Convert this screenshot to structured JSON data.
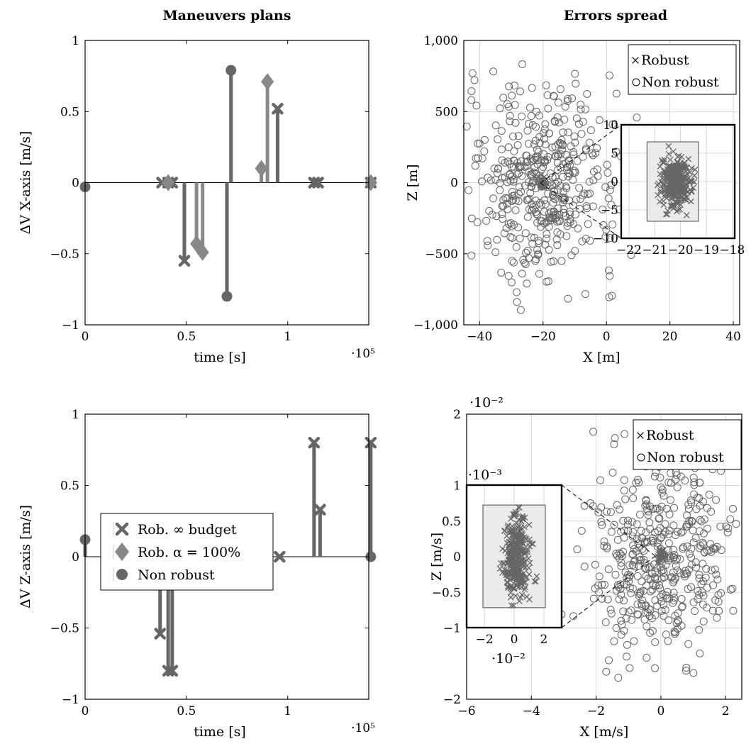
{
  "titles": {
    "left": "Maneuvers plans",
    "right": "Errors spread"
  },
  "colors": {
    "mark": "#666666",
    "light": "#888888",
    "grid": "#cccccc",
    "inset_fill": "#ebebeb"
  },
  "chart_data": [
    {
      "type": "stem",
      "ylabel": "ΔV X-axis [m/s]",
      "xlabel": "time [s]",
      "xscale_label": "·10⁵",
      "xlim": [
        0,
        1.4
      ],
      "ylim": [
        -1,
        1
      ],
      "xticks": [
        0,
        0.5,
        1
      ],
      "xtick_labels": [
        "0",
        "0.5",
        "1"
      ],
      "yticks": [
        1,
        0.5,
        0,
        -0.5,
        -1
      ],
      "ytick_labels": [
        "1",
        "0.5",
        "0",
        "−0.5",
        "−1"
      ],
      "series": [
        {
          "marker": "x",
          "x": [
            0.38,
            0.41,
            0.43,
            0.49,
            0.95,
            1.13,
            1.15,
            1.41
          ],
          "y": [
            0,
            0,
            0,
            -0.55,
            0.52,
            0,
            0,
            0
          ]
        },
        {
          "marker": "diamond",
          "x": [
            0.41,
            0.55,
            0.58,
            0.87,
            0.9,
            1.41
          ],
          "y": [
            0,
            -0.43,
            -0.49,
            0.1,
            0.71,
            0
          ]
        },
        {
          "marker": "circle",
          "x": [
            0,
            0.7,
            0.72
          ],
          "y": [
            -0.03,
            -0.8,
            0.79
          ]
        }
      ]
    },
    {
      "type": "scatter",
      "ylabel": "Z [m]",
      "xlabel": "X [m]",
      "xlim": [
        -45,
        42
      ],
      "ylim": [
        -1000,
        1000
      ],
      "xticks": [
        -40,
        -20,
        0,
        20,
        40
      ],
      "xtick_labels": [
        "−40",
        "−20",
        "0",
        "20",
        "40"
      ],
      "yticks": [
        1000,
        500,
        0,
        -500,
        -1000
      ],
      "ytick_labels": [
        "1,000",
        "500",
        "0",
        "−500",
        "−1,000"
      ],
      "legend": [
        "Robust",
        "Non robust"
      ],
      "legend_position": "top-right",
      "cloud": {
        "center": [
          -20,
          0
        ],
        "spread": [
          12,
          340
        ],
        "count": 460
      },
      "inset": {
        "xlim": [
          -22.3,
          -17.9
        ],
        "ylim": [
          -10,
          10
        ],
        "xticks": [
          -22,
          -21,
          -20,
          -19,
          -18
        ],
        "xtick_labels": [
          "−22",
          "−21",
          "−20",
          "−19",
          "−18"
        ],
        "yticks": [
          10,
          5,
          0,
          -5,
          -10
        ],
        "ytick_labels": [
          "10",
          "5",
          "0",
          "−5",
          "−10"
        ],
        "box_x": [
          -21.3,
          -19.3
        ],
        "box_y": [
          -7,
          7
        ],
        "cluster": {
          "center": [
            -20.2,
            0
          ],
          "spread": [
            0.28,
            2.2
          ],
          "count": 320
        }
      }
    },
    {
      "type": "stem",
      "ylabel": "ΔV Z-axis [m/s]",
      "xlabel": "time [s]",
      "xscale_label": "·10⁵",
      "xlim": [
        0,
        1.4
      ],
      "ylim": [
        -1,
        1
      ],
      "xticks": [
        0,
        0.5,
        1
      ],
      "xtick_labels": [
        "0",
        "0.5",
        "1"
      ],
      "yticks": [
        1,
        0.5,
        0,
        -0.5,
        -1
      ],
      "ytick_labels": [
        "1",
        "0.5",
        "0",
        "−0.5",
        "−1"
      ],
      "legend": [
        "Rob. ∞ budget",
        "Rob. α = 100%",
        "Non robust"
      ],
      "legend_position": "center-left",
      "series": [
        {
          "marker": "x",
          "x": [
            0.37,
            0.41,
            0.43,
            0.49,
            0.96,
            1.13,
            1.16,
            1.41
          ],
          "y": [
            -0.54,
            -0.8,
            -0.8,
            0,
            0,
            0.8,
            0.33,
            0.8
          ]
        },
        {
          "marker": "diamond",
          "x": [
            0.4,
            0.55,
            0.57,
            0.87,
            0.89
          ],
          "y": [
            0,
            0,
            0,
            0,
            0
          ]
        },
        {
          "marker": "circle",
          "x": [
            0,
            0.7,
            0.72,
            1.41
          ],
          "y": [
            0.12,
            0,
            0,
            0
          ]
        }
      ]
    },
    {
      "type": "scatter",
      "ylabel": "Z [m/s]",
      "xlabel": "X [m/s]",
      "yscale_label": "·10⁻²",
      "xlim": [
        -6,
        2.5
      ],
      "ylim": [
        -2,
        2
      ],
      "xticks": [
        -6,
        -4,
        -2,
        0,
        2
      ],
      "xtick_labels": [
        "−6",
        "−4",
        "−2",
        "0",
        "2"
      ],
      "yticks": [
        2,
        1,
        0.5,
        0,
        -0.5,
        -1,
        -2
      ],
      "ytick_labels": [
        "2",
        "1",
        "0.5",
        "0",
        "−0.5",
        "−1",
        "−2"
      ],
      "legend": [
        "Robust",
        "Non robust"
      ],
      "legend_position": "top-right",
      "cloud": {
        "center": [
          0,
          0
        ],
        "spread": [
          1.05,
          0.72
        ],
        "count": 460
      },
      "inset": {
        "xlim": [
          -3.2,
          3.2
        ],
        "ylim": [
          -1,
          1
        ],
        "xticks": [
          -2,
          0,
          2
        ],
        "xtick_labels": [
          "−2",
          "0",
          "2"
        ],
        "xscale_label": "·10⁻²",
        "yscale_label": "·10⁻³",
        "box_x": [
          -2.1,
          2.1
        ],
        "box_y": [
          -0.72,
          0.72
        ],
        "cluster": {
          "center": [
            0.2,
            0
          ],
          "spread": [
            0.45,
            0.28
          ],
          "count": 320
        }
      }
    }
  ]
}
